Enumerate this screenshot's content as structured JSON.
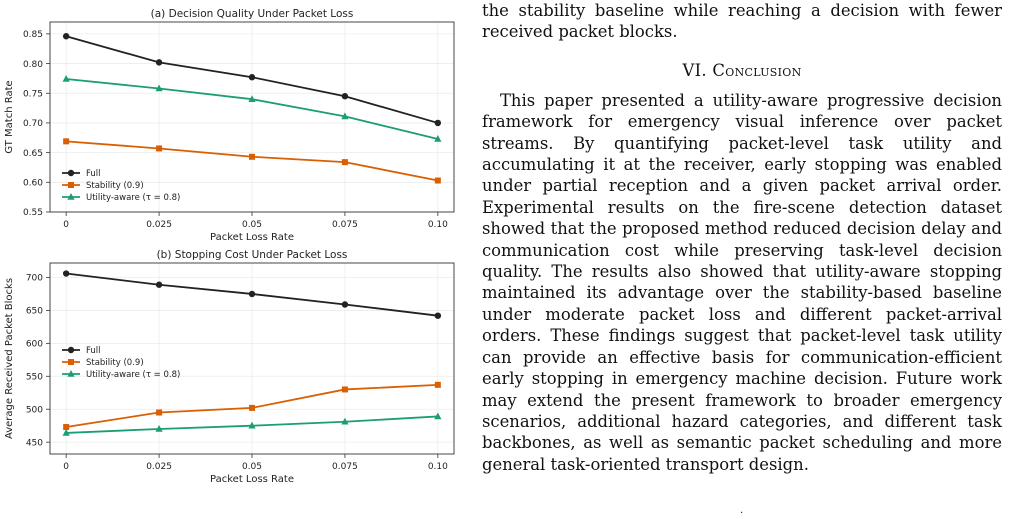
{
  "text": {
    "continuation": "the stability baseline while reaching a decision with fewer received packet blocks.",
    "section_heading": "VI. Conclusion",
    "conclusion": "This paper presented a utility-aware progressive decision framework for emergency visual inference over packet streams. By quantifying packet-level task utility and accumulating it at the receiver, early stopping was enabled under partial reception and a given packet arrival order. Experimental results on the fire-scene detection dataset showed that the proposed method reduced decision delay and communication cost while preserving task-level decision quality. The results also showed that utility-aware stopping maintained its advantage over the stability-based baseline under moderate packet loss and different packet-arrival orders. These findings suggest that packet-level task utility can provide an effective basis for communication-efficient early stopping in emergency machine decision. Future work may extend the present framework to broader emergency scenarios, additional hazard categories, and different task backbones, as well as semantic packet scheduling and more general task-oriented transport design.",
    "page_mark": "·"
  },
  "chart_data": [
    {
      "type": "line",
      "title": "(a) Decision Quality Under Packet Loss",
      "xlabel": "Packet Loss Rate",
      "ylabel": "GT Match Rate",
      "categories": [
        "0",
        "0.025",
        "0.05",
        "0.075",
        "0.10"
      ],
      "ylim": [
        0.55,
        0.87
      ],
      "yticks": [
        0.55,
        0.6,
        0.65,
        0.7,
        0.75,
        0.8,
        0.85
      ],
      "ytick_labels": [
        "0.55",
        "0.60",
        "0.65",
        "0.70",
        "0.75",
        "0.80",
        "0.85"
      ],
      "grid": true,
      "legend_position": "lower-left",
      "series": [
        {
          "name": "Full",
          "color": "#222222",
          "marker": "circle",
          "values": [
            0.846,
            0.802,
            0.777,
            0.745,
            0.7
          ]
        },
        {
          "name": "Stability (0.9)",
          "color": "#d95f02",
          "marker": "square",
          "values": [
            0.669,
            0.657,
            0.643,
            0.634,
            0.603
          ]
        },
        {
          "name": "Utility-aware (τ = 0.8)",
          "color": "#1b9e77",
          "marker": "triangle",
          "values": [
            0.774,
            0.758,
            0.74,
            0.711,
            0.673
          ]
        }
      ]
    },
    {
      "type": "line",
      "title": "(b) Stopping Cost Under Packet Loss",
      "xlabel": "Packet Loss Rate",
      "ylabel": "Average Received Packet Blocks",
      "categories": [
        "0",
        "0.025",
        "0.05",
        "0.075",
        "0.10"
      ],
      "ylim": [
        432,
        722
      ],
      "yticks": [
        450,
        500,
        550,
        600,
        650,
        700
      ],
      "ytick_labels": [
        "450",
        "500",
        "550",
        "600",
        "650",
        "700"
      ],
      "grid": true,
      "legend_position": "center-left",
      "series": [
        {
          "name": "Full",
          "color": "#222222",
          "marker": "circle",
          "values": [
            706,
            689,
            675,
            659,
            642
          ]
        },
        {
          "name": "Stability (0.9)",
          "color": "#d95f02",
          "marker": "square",
          "values": [
            473,
            495,
            502,
            530,
            537
          ]
        },
        {
          "name": "Utility-aware (τ = 0.8)",
          "color": "#1b9e77",
          "marker": "triangle",
          "values": [
            464,
            470,
            475,
            481,
            489
          ]
        }
      ]
    }
  ]
}
